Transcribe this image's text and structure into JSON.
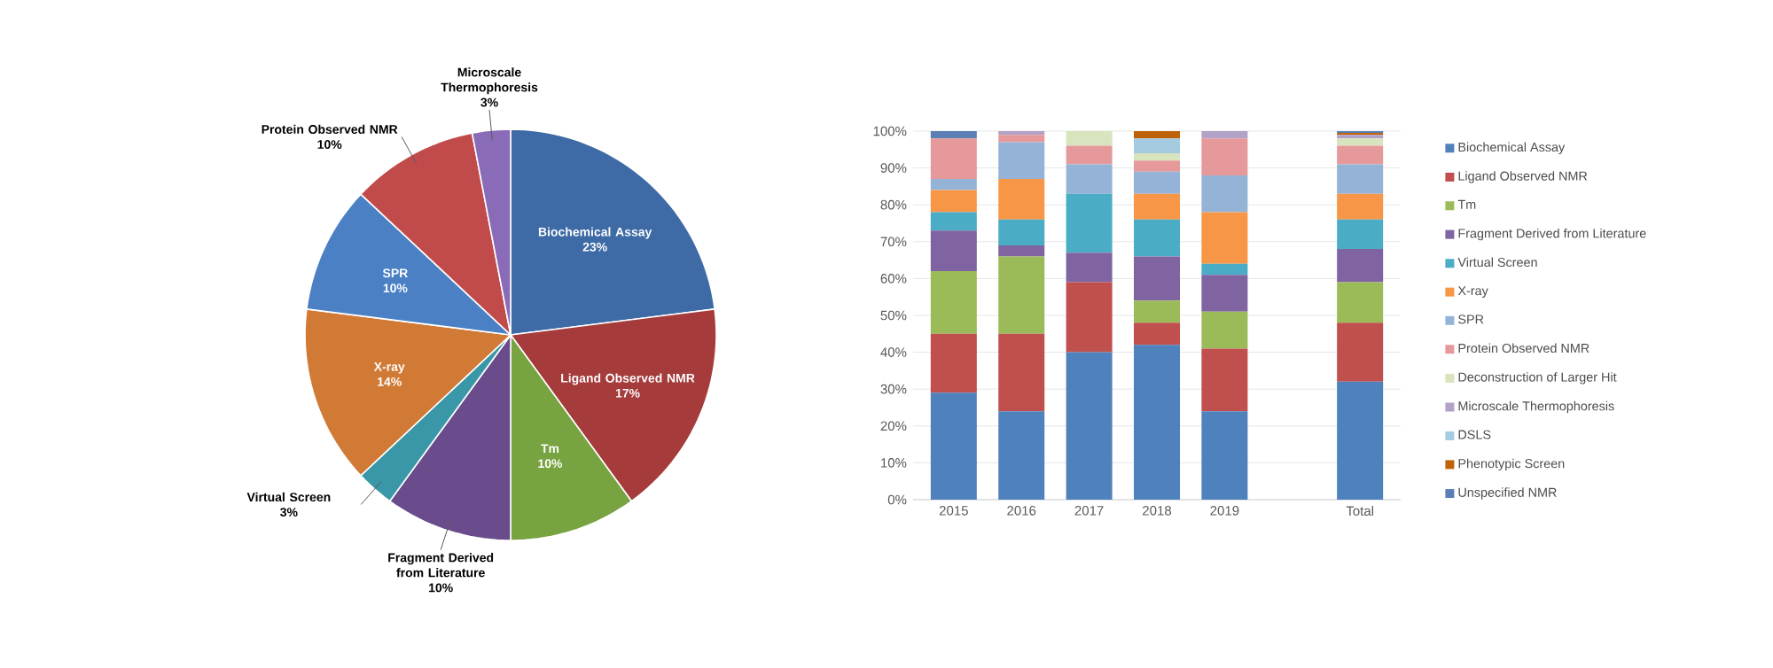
{
  "chart_data": [
    {
      "type": "pie",
      "categories": [
        "Biochemical Assay",
        "Ligand Observed NMR",
        "Tm",
        "Fragment Derived from Literature",
        "Virtual Screen",
        "X-ray",
        "SPR",
        "Protein Observed NMR",
        "Microscale Thermophoresis"
      ],
      "values": [
        23,
        17,
        10,
        10,
        3,
        14,
        10,
        10,
        3
      ],
      "value_labels": [
        "23%",
        "17%",
        "10%",
        "10%",
        "3%",
        "14%",
        "10%",
        "10%",
        "3%"
      ],
      "colors": [
        "#3e6ba5",
        "#a53b3b",
        "#77a340",
        "#6a4c8c",
        "#3a97a8",
        "#d07a35",
        "#4b81c4",
        "#c14b4b",
        "#8a6bb8"
      ]
    },
    {
      "type": "bar",
      "stacked": true,
      "categories": [
        "2015",
        "2016",
        "2017",
        "2018",
        "2019",
        null,
        "Total"
      ],
      "ylim": [
        0,
        100
      ],
      "yticks": [
        {
          "value": 0,
          "label": "0%"
        },
        {
          "value": 10,
          "label": "10%"
        },
        {
          "value": 20,
          "label": "20%"
        },
        {
          "value": 30,
          "label": "30%"
        },
        {
          "value": 40,
          "label": "40%"
        },
        {
          "value": 50,
          "label": "50%"
        },
        {
          "value": 60,
          "label": "60%"
        },
        {
          "value": 70,
          "label": "70%"
        },
        {
          "value": 80,
          "label": "80%"
        },
        {
          "value": 90,
          "label": "90%"
        },
        {
          "value": 100,
          "label": "100%"
        }
      ],
      "grid": "y",
      "legend": "right",
      "series": [
        {
          "name": "Biochemical Assay",
          "color": "#4f81bd",
          "values": [
            29,
            24,
            40,
            42,
            24,
            null,
            32
          ]
        },
        {
          "name": "Ligand Observed NMR",
          "color": "#c0504d",
          "values": [
            16,
            21,
            19,
            6,
            17,
            null,
            16
          ]
        },
        {
          "name": "Tm",
          "color": "#9bbb59",
          "values": [
            17,
            21,
            0,
            6,
            10,
            null,
            11
          ]
        },
        {
          "name": "Fragment Derived from Literature",
          "color": "#8064a2",
          "values": [
            11,
            3,
            8,
            12,
            10,
            null,
            9
          ]
        },
        {
          "name": "Virtual Screen",
          "color": "#4bacc6",
          "values": [
            5,
            7,
            16,
            10,
            3,
            null,
            8
          ]
        },
        {
          "name": "X-ray",
          "color": "#f79646",
          "values": [
            6,
            11,
            0,
            7,
            14,
            null,
            7
          ]
        },
        {
          "name": "SPR",
          "color": "#95b3d7",
          "values": [
            3,
            10,
            8,
            6,
            10,
            null,
            8
          ]
        },
        {
          "name": "Protein Observed NMR",
          "color": "#e6999a",
          "values": [
            11,
            2,
            5,
            3,
            10,
            null,
            5
          ]
        },
        {
          "name": "Deconstruction of Larger Hit",
          "color": "#d7e4bd",
          "values": [
            0,
            0,
            4,
            2,
            0,
            null,
            2
          ]
        },
        {
          "name": "Microscale Thermophoresis",
          "color": "#b3a2c7",
          "values": [
            0,
            1,
            0,
            0,
            2,
            null,
            1
          ]
        },
        {
          "name": "DSLS",
          "color": "#a5cbe0",
          "values": [
            0,
            0,
            0,
            4,
            0,
            null,
            null
          ]
        },
        {
          "name": "Phenotypic Screen",
          "color": "#c0620a",
          "values": [
            0,
            0,
            0,
            2,
            0,
            null,
            0.5
          ]
        },
        {
          "name": "Unspecified NMR",
          "color": "#5b7fb5",
          "values": [
            2,
            0,
            0,
            0,
            0,
            null,
            0.5
          ]
        }
      ]
    }
  ]
}
